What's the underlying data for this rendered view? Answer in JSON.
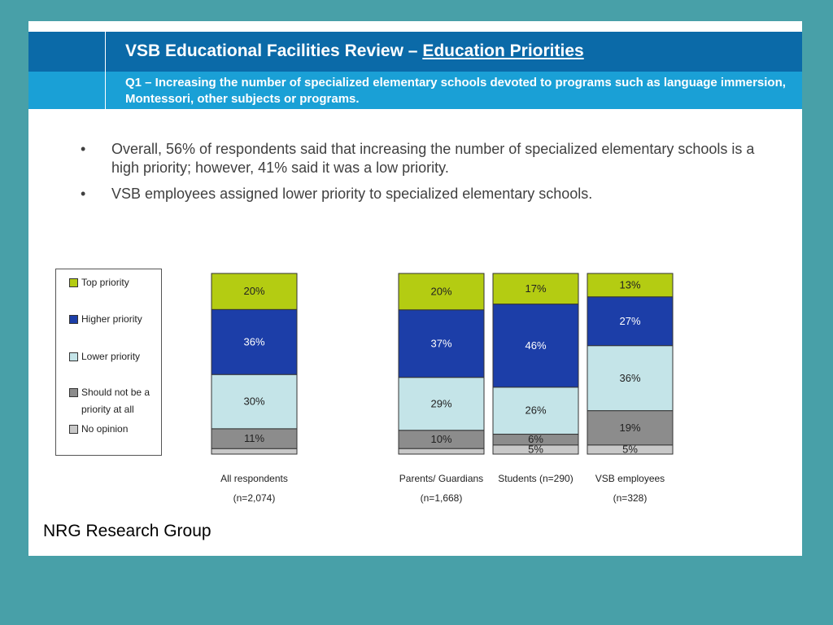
{
  "header": {
    "title_prefix": "VSB Educational Facilities Review –",
    "title_link": "Education Priorities",
    "question": "Q1 – Increasing the number of specialized elementary schools devoted to programs such as language immersion, Montessori, other subjects or programs."
  },
  "bullets": [
    "Overall, 56% of respondents said that increasing the number of specialized elementary schools is a high priority; however, 41% said it was a low priority.",
    "VSB employees assigned lower priority to specialized elementary schools."
  ],
  "bullet_glyph": "•",
  "legend": [
    {
      "label": "Top priority",
      "color": "#b4cc12"
    },
    {
      "label": "Higher priority",
      "color": "#1c3ea8"
    },
    {
      "label": "Lower priority",
      "color": "#c4e4e8"
    },
    {
      "label": "Should not be a priority at all",
      "color": "#8c8c8c"
    },
    {
      "label": "No opinion",
      "color": "#c8c8c8"
    }
  ],
  "footer": "NRG Research Group",
  "chart_data": {
    "type": "bar",
    "stacked": true,
    "percent_scale": true,
    "categories": [
      {
        "name": "All respondents",
        "n": "(n=2,074)"
      },
      {
        "name": "Parents/ Guardians",
        "n": "(n=1,668)"
      },
      {
        "name": "Students (n=290)",
        "n": ""
      },
      {
        "name": "VSB employees",
        "n": "(n=328)"
      }
    ],
    "series": [
      {
        "name": "Top priority",
        "color": "#b4cc12",
        "values": [
          20,
          20,
          17,
          13
        ]
      },
      {
        "name": "Higher priority",
        "color": "#1c3ea8",
        "values": [
          36,
          37,
          46,
          27
        ]
      },
      {
        "name": "Lower priority",
        "color": "#c4e4e8",
        "values": [
          30,
          29,
          26,
          36
        ]
      },
      {
        "name": "Should not be a priority at all",
        "color": "#8c8c8c",
        "values": [
          11,
          10,
          6,
          19
        ]
      },
      {
        "name": "No opinion",
        "color": "#c8c8c8",
        "values": [
          3,
          3,
          5,
          5
        ]
      }
    ],
    "labels": [
      [
        "20%",
        "36%",
        "30%",
        "11%",
        ""
      ],
      [
        "20%",
        "37%",
        "29%",
        "10%",
        ""
      ],
      [
        "17%",
        "46%",
        "26%",
        "6%",
        "5%"
      ],
      [
        "13%",
        "27%",
        "36%",
        "19%",
        "5%"
      ]
    ],
    "label_colors": [
      "#222222",
      "#ffffff",
      "#222222",
      "#222222",
      "#222222"
    ]
  }
}
